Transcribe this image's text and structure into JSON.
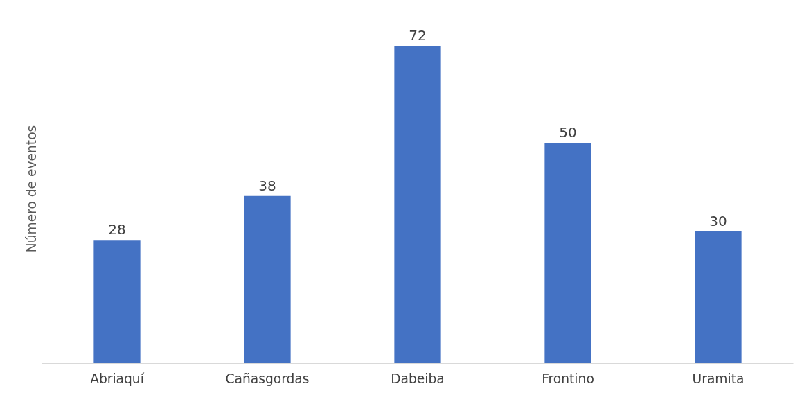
{
  "chart_data": {
    "type": "bar",
    "ylabel": "Número de eventos",
    "categories": [
      "Abriaquí",
      "Cañasgordas",
      "Dabeiba",
      "Frontino",
      "Uramita"
    ],
    "values": [
      28,
      38,
      72,
      50,
      30
    ],
    "color": "#4472c4",
    "data_labels": true,
    "grid": false,
    "tick_labels": "x"
  }
}
